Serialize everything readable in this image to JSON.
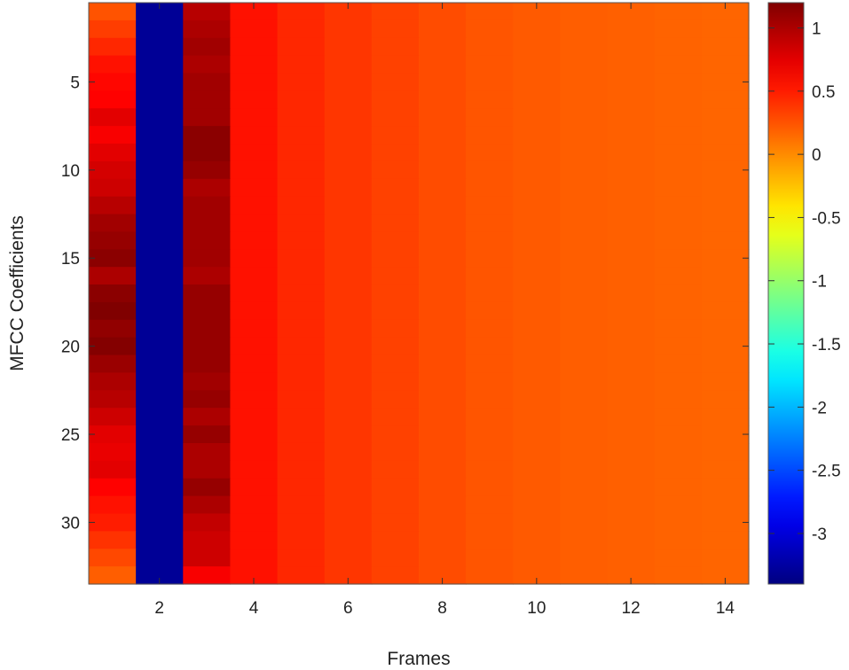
{
  "chart_data": {
    "type": "heatmap",
    "xlabel": "Frames",
    "ylabel": "MFCC  Coefficients",
    "x": [
      1,
      2,
      3,
      4,
      5,
      6,
      7,
      8,
      9,
      10,
      11,
      12,
      13,
      14
    ],
    "y_count": 33,
    "xlim": [
      0.5,
      14.5
    ],
    "ylim": [
      0.5,
      33.5
    ],
    "xticks": [
      2,
      4,
      6,
      8,
      10,
      12,
      14
    ],
    "yticks": [
      5,
      10,
      15,
      20,
      25,
      30
    ],
    "y_direction": "top-to-bottom",
    "colormap": "jet",
    "clim": [
      -3.4,
      1.2
    ],
    "colorbar": {
      "position": "right",
      "ticks": [
        1,
        0.5,
        0,
        -0.5,
        -1,
        -1.5,
        -2,
        -2.5,
        -3
      ],
      "tick_labels": [
        "1",
        "0.5",
        "0",
        "-0.5",
        "-1",
        "-1.5",
        "-2",
        "-2.5",
        "-3"
      ]
    },
    "frame_profiles": {
      "2": -3.3,
      "4": 0.55,
      "5": 0.45,
      "6": 0.38,
      "7": 0.33,
      "8": 0.28,
      "9": 0.24,
      "10": 0.22,
      "11": 0.2,
      "12": 0.19,
      "13": 0.18,
      "14": 0.17
    },
    "values": [
      [
        0.25,
        -3.3,
        0.95,
        0.55,
        0.45,
        0.38,
        0.33,
        0.28,
        0.24,
        0.22,
        0.2,
        0.19,
        0.18,
        0.17
      ],
      [
        0.35,
        -3.3,
        1.0,
        0.55,
        0.45,
        0.38,
        0.33,
        0.28,
        0.24,
        0.22,
        0.2,
        0.19,
        0.18,
        0.17
      ],
      [
        0.45,
        -3.3,
        1.05,
        0.55,
        0.45,
        0.38,
        0.33,
        0.28,
        0.24,
        0.22,
        0.2,
        0.19,
        0.18,
        0.17
      ],
      [
        0.55,
        -3.3,
        1.0,
        0.55,
        0.45,
        0.38,
        0.33,
        0.28,
        0.24,
        0.22,
        0.2,
        0.19,
        0.18,
        0.17
      ],
      [
        0.6,
        -3.3,
        1.05,
        0.55,
        0.45,
        0.38,
        0.33,
        0.28,
        0.24,
        0.22,
        0.2,
        0.19,
        0.18,
        0.17
      ],
      [
        0.62,
        -3.3,
        1.05,
        0.55,
        0.45,
        0.38,
        0.33,
        0.28,
        0.24,
        0.22,
        0.2,
        0.19,
        0.18,
        0.17
      ],
      [
        0.75,
        -3.3,
        1.05,
        0.55,
        0.45,
        0.38,
        0.33,
        0.28,
        0.24,
        0.22,
        0.2,
        0.19,
        0.18,
        0.17
      ],
      [
        0.65,
        -3.3,
        1.15,
        0.55,
        0.45,
        0.38,
        0.33,
        0.28,
        0.24,
        0.22,
        0.2,
        0.19,
        0.18,
        0.17
      ],
      [
        0.75,
        -3.3,
        1.15,
        0.55,
        0.45,
        0.38,
        0.33,
        0.28,
        0.24,
        0.22,
        0.2,
        0.19,
        0.18,
        0.17
      ],
      [
        0.82,
        -3.3,
        1.1,
        0.55,
        0.45,
        0.38,
        0.33,
        0.28,
        0.24,
        0.22,
        0.2,
        0.19,
        0.18,
        0.17
      ],
      [
        0.85,
        -3.3,
        1.0,
        0.55,
        0.45,
        0.38,
        0.33,
        0.28,
        0.24,
        0.22,
        0.2,
        0.19,
        0.18,
        0.17
      ],
      [
        0.95,
        -3.3,
        1.05,
        0.55,
        0.45,
        0.38,
        0.33,
        0.28,
        0.24,
        0.22,
        0.2,
        0.19,
        0.18,
        0.17
      ],
      [
        1.05,
        -3.3,
        1.05,
        0.55,
        0.45,
        0.38,
        0.33,
        0.28,
        0.24,
        0.22,
        0.2,
        0.19,
        0.18,
        0.17
      ],
      [
        1.1,
        -3.3,
        1.05,
        0.55,
        0.45,
        0.38,
        0.33,
        0.28,
        0.24,
        0.22,
        0.2,
        0.19,
        0.18,
        0.17
      ],
      [
        1.15,
        -3.3,
        1.05,
        0.55,
        0.45,
        0.38,
        0.33,
        0.28,
        0.24,
        0.22,
        0.2,
        0.19,
        0.18,
        0.17
      ],
      [
        1.0,
        -3.3,
        1.0,
        0.55,
        0.45,
        0.38,
        0.33,
        0.28,
        0.24,
        0.22,
        0.2,
        0.19,
        0.18,
        0.17
      ],
      [
        1.15,
        -3.3,
        1.1,
        0.55,
        0.45,
        0.38,
        0.33,
        0.28,
        0.24,
        0.22,
        0.2,
        0.19,
        0.18,
        0.17
      ],
      [
        1.2,
        -3.3,
        1.1,
        0.55,
        0.45,
        0.38,
        0.33,
        0.28,
        0.24,
        0.22,
        0.2,
        0.19,
        0.18,
        0.17
      ],
      [
        1.12,
        -3.3,
        1.1,
        0.55,
        0.45,
        0.38,
        0.33,
        0.28,
        0.24,
        0.22,
        0.2,
        0.19,
        0.18,
        0.17
      ],
      [
        1.18,
        -3.3,
        1.1,
        0.55,
        0.45,
        0.38,
        0.33,
        0.28,
        0.24,
        0.22,
        0.2,
        0.19,
        0.18,
        0.17
      ],
      [
        1.08,
        -3.3,
        1.1,
        0.55,
        0.45,
        0.38,
        0.33,
        0.28,
        0.24,
        0.22,
        0.2,
        0.19,
        0.18,
        0.17
      ],
      [
        1.0,
        -3.3,
        1.05,
        0.55,
        0.45,
        0.38,
        0.33,
        0.28,
        0.24,
        0.22,
        0.2,
        0.19,
        0.18,
        0.17
      ],
      [
        0.95,
        -3.3,
        1.1,
        0.55,
        0.45,
        0.38,
        0.33,
        0.28,
        0.24,
        0.22,
        0.2,
        0.19,
        0.18,
        0.17
      ],
      [
        0.85,
        -3.3,
        1.0,
        0.55,
        0.45,
        0.38,
        0.33,
        0.28,
        0.24,
        0.22,
        0.2,
        0.19,
        0.18,
        0.17
      ],
      [
        0.75,
        -3.3,
        1.1,
        0.55,
        0.45,
        0.38,
        0.33,
        0.28,
        0.24,
        0.22,
        0.2,
        0.19,
        0.18,
        0.17
      ],
      [
        0.72,
        -3.3,
        1.0,
        0.55,
        0.45,
        0.38,
        0.33,
        0.28,
        0.24,
        0.22,
        0.2,
        0.19,
        0.18,
        0.17
      ],
      [
        0.75,
        -3.3,
        1.0,
        0.55,
        0.45,
        0.38,
        0.33,
        0.28,
        0.24,
        0.22,
        0.2,
        0.19,
        0.18,
        0.17
      ],
      [
        0.62,
        -3.3,
        1.1,
        0.55,
        0.45,
        0.38,
        0.33,
        0.28,
        0.24,
        0.22,
        0.2,
        0.19,
        0.18,
        0.17
      ],
      [
        0.55,
        -3.3,
        1.0,
        0.55,
        0.45,
        0.38,
        0.33,
        0.28,
        0.24,
        0.22,
        0.2,
        0.19,
        0.18,
        0.17
      ],
      [
        0.5,
        -3.3,
        0.9,
        0.55,
        0.45,
        0.38,
        0.33,
        0.28,
        0.24,
        0.22,
        0.2,
        0.19,
        0.18,
        0.17
      ],
      [
        0.4,
        -3.3,
        0.85,
        0.55,
        0.45,
        0.38,
        0.33,
        0.28,
        0.24,
        0.22,
        0.2,
        0.19,
        0.18,
        0.17
      ],
      [
        0.3,
        -3.3,
        0.85,
        0.55,
        0.45,
        0.38,
        0.33,
        0.28,
        0.24,
        0.22,
        0.2,
        0.19,
        0.18,
        0.17
      ],
      [
        0.2,
        -3.3,
        0.65,
        0.55,
        0.45,
        0.38,
        0.33,
        0.28,
        0.24,
        0.22,
        0.2,
        0.19,
        0.18,
        0.17
      ]
    ]
  }
}
